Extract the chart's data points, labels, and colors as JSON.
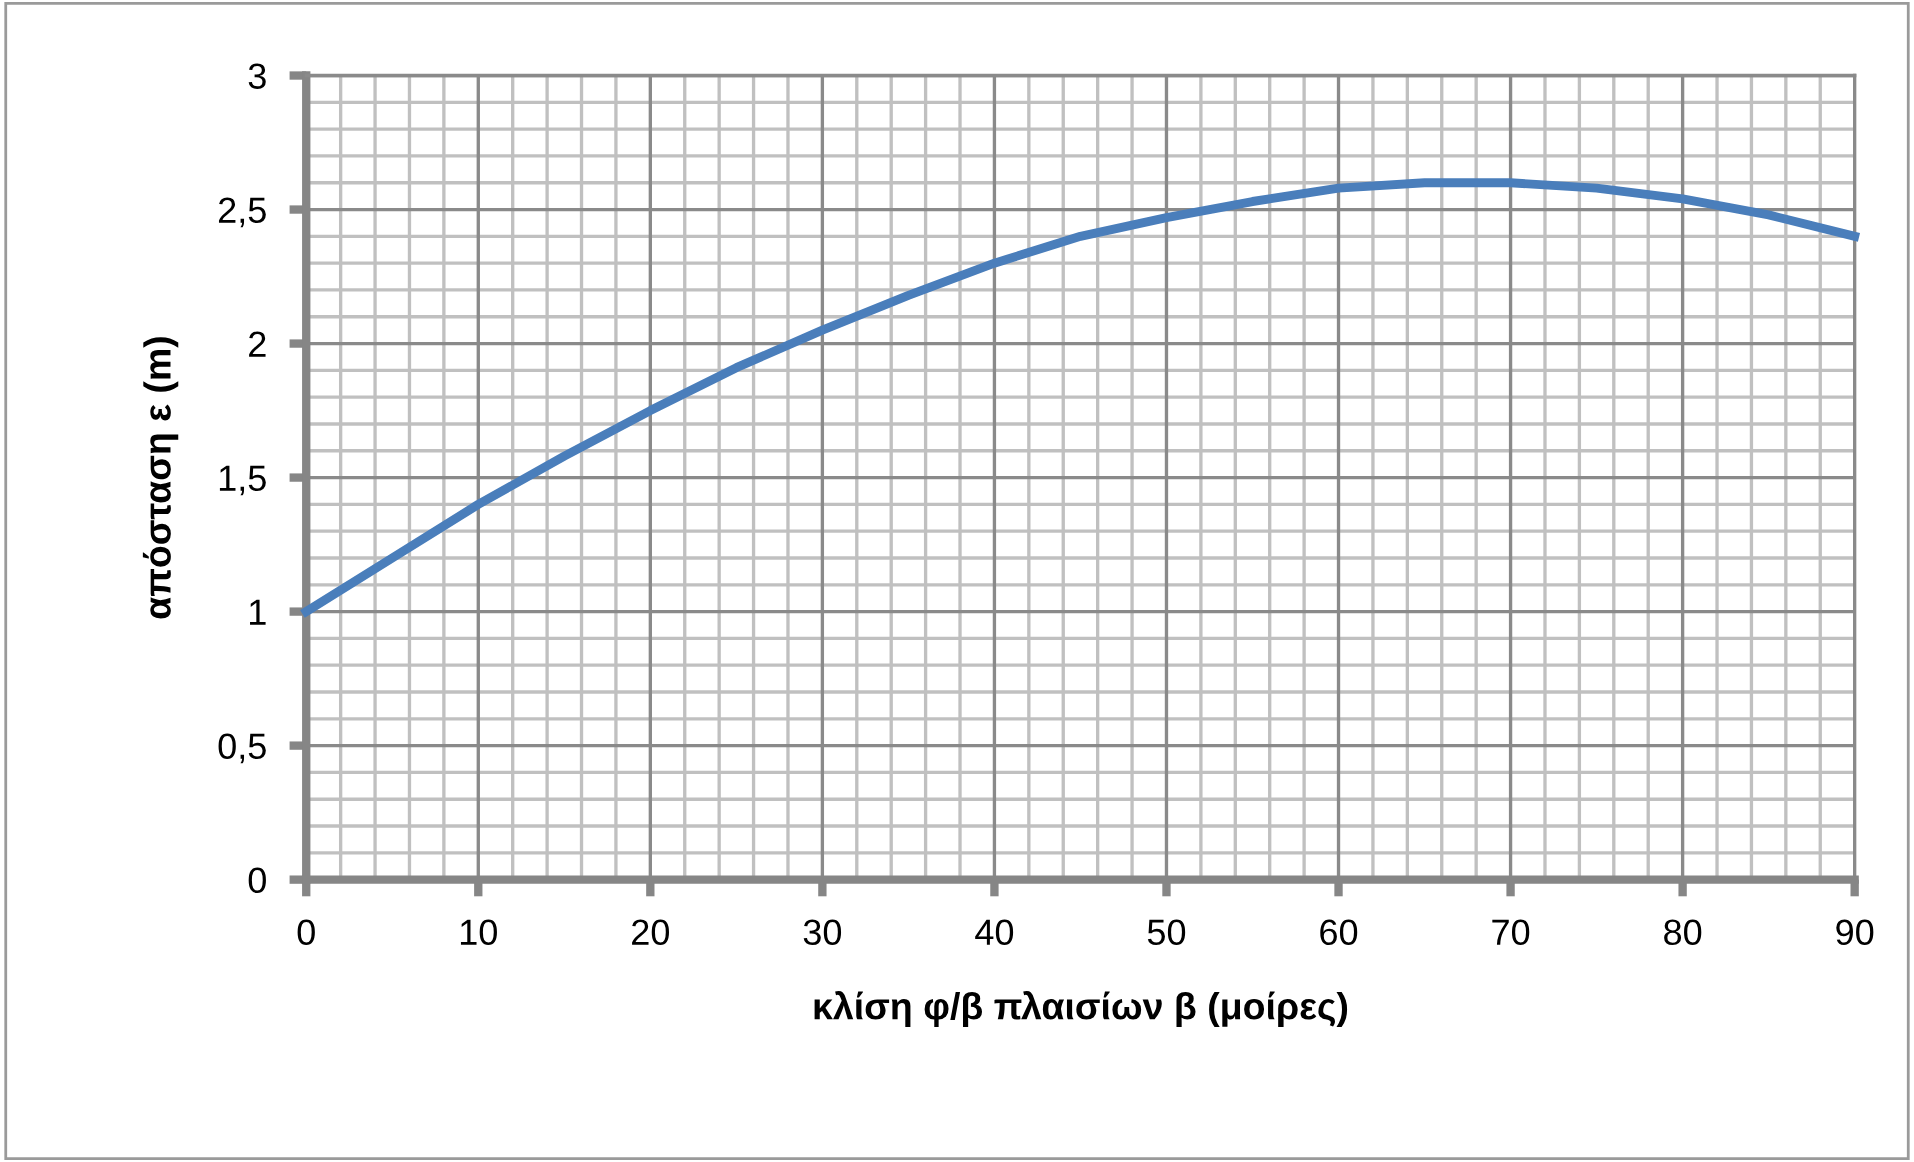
{
  "chart_data": {
    "type": "line",
    "xlabel": "κλίση φ/β πλαισίων β (μοίρες)",
    "ylabel": "απόσταση ε (m)",
    "x": [
      0,
      5,
      10,
      15,
      20,
      25,
      30,
      35,
      40,
      45,
      50,
      55,
      60,
      65,
      70,
      75,
      80,
      85,
      90
    ],
    "series": [
      {
        "color": "#4a7ebb",
        "values": [
          1.0,
          1.2,
          1.4,
          1.58,
          1.75,
          1.91,
          2.05,
          2.18,
          2.3,
          2.4,
          2.47,
          2.53,
          2.58,
          2.6,
          2.6,
          2.58,
          2.54,
          2.48,
          2.4
        ]
      }
    ],
    "xlim": [
      0,
      90
    ],
    "xticks": [
      0,
      10,
      20,
      30,
      40,
      50,
      60,
      70,
      80,
      90
    ],
    "ylim": [
      0,
      3
    ],
    "yticks": [
      0,
      {
        "value": 0.5,
        "label": "0,5"
      },
      1,
      {
        "value": 1.5,
        "label": "1,5"
      },
      2,
      {
        "value": 2.5,
        "label": "2,5"
      },
      3
    ],
    "grid": true,
    "legend": false,
    "marker": "none",
    "line_style": "solid"
  }
}
